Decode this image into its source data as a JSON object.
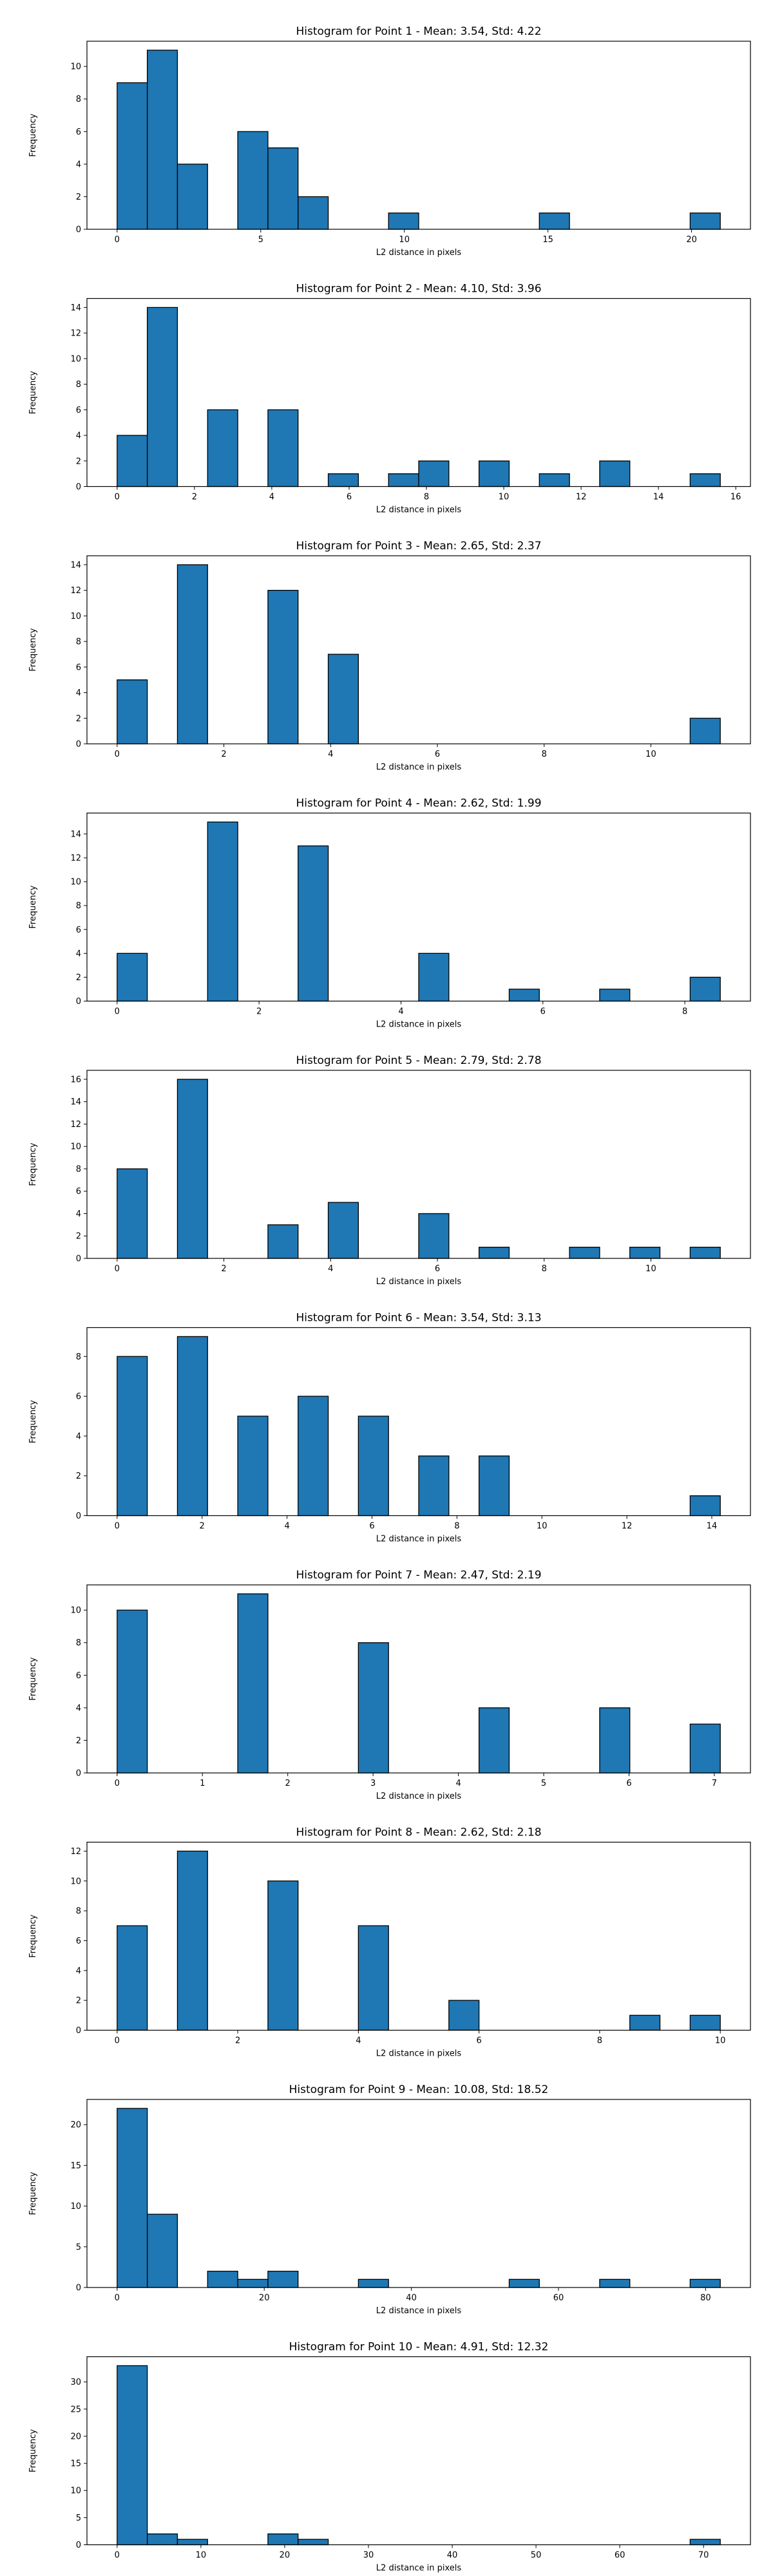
{
  "style": {
    "bar_color": "#1f77b4",
    "edge_color": "#000000"
  },
  "chart_data": [
    {
      "type": "bar",
      "title": "Histogram for Point 1 - Mean: 3.54, Std: 4.22",
      "xlabel": "L2 distance in pixels",
      "ylabel": "Frequency",
      "xlim": [
        -1.05,
        22.05
      ],
      "ylim": [
        0,
        11.55
      ],
      "xticks": [
        0,
        5,
        10,
        15,
        20
      ],
      "yticks": [
        0,
        2,
        4,
        6,
        8,
        10
      ],
      "bins": [
        {
          "x0": 0,
          "x1": 1.05,
          "count": 9
        },
        {
          "x0": 1.05,
          "x1": 2.1,
          "count": 11
        },
        {
          "x0": 2.1,
          "x1": 3.15,
          "count": 4
        },
        {
          "x0": 4.2,
          "x1": 5.25,
          "count": 6
        },
        {
          "x0": 5.25,
          "x1": 6.3,
          "count": 5
        },
        {
          "x0": 6.3,
          "x1": 7.35,
          "count": 2
        },
        {
          "x0": 9.45,
          "x1": 10.5,
          "count": 1
        },
        {
          "x0": 14.7,
          "x1": 15.75,
          "count": 1
        },
        {
          "x0": 19.95,
          "x1": 21.0,
          "count": 1
        }
      ]
    },
    {
      "type": "bar",
      "title": "Histogram for Point 2 - Mean: 4.10, Std: 3.96",
      "xlabel": "L2 distance in pixels",
      "ylabel": "Frequency",
      "xlim": [
        -0.78,
        16.38
      ],
      "ylim": [
        0,
        14.7
      ],
      "xticks": [
        0,
        2,
        4,
        6,
        8,
        10,
        12,
        14,
        16
      ],
      "yticks": [
        0,
        2,
        4,
        6,
        8,
        10,
        12,
        14
      ],
      "bins": [
        {
          "x0": 0,
          "x1": 0.78,
          "count": 4
        },
        {
          "x0": 0.78,
          "x1": 1.56,
          "count": 14
        },
        {
          "x0": 2.34,
          "x1": 3.12,
          "count": 6
        },
        {
          "x0": 3.9,
          "x1": 4.68,
          "count": 6
        },
        {
          "x0": 5.46,
          "x1": 6.24,
          "count": 1
        },
        {
          "x0": 7.02,
          "x1": 7.8,
          "count": 1
        },
        {
          "x0": 7.8,
          "x1": 8.58,
          "count": 2
        },
        {
          "x0": 9.36,
          "x1": 10.14,
          "count": 2
        },
        {
          "x0": 10.92,
          "x1": 11.7,
          "count": 1
        },
        {
          "x0": 12.48,
          "x1": 13.26,
          "count": 2
        },
        {
          "x0": 14.82,
          "x1": 15.6,
          "count": 1
        }
      ]
    },
    {
      "type": "bar",
      "title": "Histogram for Point 3 - Mean: 2.65, Std: 2.37",
      "xlabel": "L2 distance in pixels",
      "ylabel": "Frequency",
      "xlim": [
        -0.565,
        11.865
      ],
      "ylim": [
        0,
        14.7
      ],
      "xticks": [
        0,
        2,
        4,
        6,
        8,
        10
      ],
      "yticks": [
        0,
        2,
        4,
        6,
        8,
        10,
        12,
        14
      ],
      "bins": [
        {
          "x0": 0,
          "x1": 0.565,
          "count": 5
        },
        {
          "x0": 1.13,
          "x1": 1.695,
          "count": 14
        },
        {
          "x0": 2.825,
          "x1": 3.39,
          "count": 12
        },
        {
          "x0": 3.955,
          "x1": 4.52,
          "count": 7
        },
        {
          "x0": 10.735,
          "x1": 11.3,
          "count": 2
        }
      ]
    },
    {
      "type": "bar",
      "title": "Histogram for Point 4 - Mean: 2.62, Std: 1.99",
      "xlabel": "L2 distance in pixels",
      "ylabel": "Frequency",
      "xlim": [
        -0.425,
        8.925
      ],
      "ylim": [
        0,
        15.75
      ],
      "xticks": [
        0,
        2,
        4,
        6,
        8
      ],
      "yticks": [
        0,
        2,
        4,
        6,
        8,
        10,
        12,
        14
      ],
      "bins": [
        {
          "x0": 0,
          "x1": 0.425,
          "count": 4
        },
        {
          "x0": 1.275,
          "x1": 1.7,
          "count": 15
        },
        {
          "x0": 2.55,
          "x1": 2.975,
          "count": 13
        },
        {
          "x0": 4.25,
          "x1": 4.675,
          "count": 4
        },
        {
          "x0": 5.525,
          "x1": 5.95,
          "count": 1
        },
        {
          "x0": 6.8,
          "x1": 7.225,
          "count": 1
        },
        {
          "x0": 8.075,
          "x1": 8.5,
          "count": 2
        }
      ]
    },
    {
      "type": "bar",
      "title": "Histogram for Point 5 - Mean: 2.79, Std: 2.78",
      "xlabel": "L2 distance in pixels",
      "ylabel": "Frequency",
      "xlim": [
        -0.565,
        11.865
      ],
      "ylim": [
        0,
        16.8
      ],
      "xticks": [
        0,
        2,
        4,
        6,
        8,
        10
      ],
      "yticks": [
        0,
        2,
        4,
        6,
        8,
        10,
        12,
        14,
        16
      ],
      "bins": [
        {
          "x0": 0,
          "x1": 0.565,
          "count": 8
        },
        {
          "x0": 1.13,
          "x1": 1.695,
          "count": 16
        },
        {
          "x0": 2.825,
          "x1": 3.39,
          "count": 3
        },
        {
          "x0": 3.955,
          "x1": 4.52,
          "count": 5
        },
        {
          "x0": 5.65,
          "x1": 6.215,
          "count": 4
        },
        {
          "x0": 6.78,
          "x1": 7.345,
          "count": 1
        },
        {
          "x0": 8.475,
          "x1": 9.04,
          "count": 1
        },
        {
          "x0": 9.605,
          "x1": 10.17,
          "count": 1
        },
        {
          "x0": 10.735,
          "x1": 11.3,
          "count": 1
        }
      ]
    },
    {
      "type": "bar",
      "title": "Histogram for Point 6 - Mean: 3.54, Std: 3.13",
      "xlabel": "L2 distance in pixels",
      "ylabel": "Frequency",
      "xlim": [
        -0.71,
        14.91
      ],
      "ylim": [
        0,
        9.45
      ],
      "xticks": [
        0,
        2,
        4,
        6,
        8,
        10,
        12,
        14
      ],
      "yticks": [
        0,
        2,
        4,
        6,
        8
      ],
      "bins": [
        {
          "x0": 0,
          "x1": 0.71,
          "count": 8
        },
        {
          "x0": 1.42,
          "x1": 2.13,
          "count": 9
        },
        {
          "x0": 2.84,
          "x1": 3.55,
          "count": 5
        },
        {
          "x0": 4.26,
          "x1": 4.97,
          "count": 6
        },
        {
          "x0": 5.68,
          "x1": 6.39,
          "count": 5
        },
        {
          "x0": 7.1,
          "x1": 7.81,
          "count": 3
        },
        {
          "x0": 8.52,
          "x1": 9.23,
          "count": 3
        },
        {
          "x0": 13.49,
          "x1": 14.2,
          "count": 1
        }
      ]
    },
    {
      "type": "bar",
      "title": "Histogram for Point 7 - Mean: 2.47, Std: 2.19",
      "xlabel": "L2 distance in pixels",
      "ylabel": "Frequency",
      "xlim": [
        -0.3535,
        7.4235
      ],
      "ylim": [
        0,
        11.55
      ],
      "xticks": [
        0,
        1,
        2,
        3,
        4,
        5,
        6,
        7
      ],
      "yticks": [
        0,
        2,
        4,
        6,
        8,
        10
      ],
      "bins": [
        {
          "x0": 0,
          "x1": 0.3535,
          "count": 10
        },
        {
          "x0": 1.414,
          "x1": 1.7675,
          "count": 11
        },
        {
          "x0": 2.828,
          "x1": 3.1815,
          "count": 8
        },
        {
          "x0": 4.242,
          "x1": 4.5955,
          "count": 4
        },
        {
          "x0": 5.656,
          "x1": 6.0095,
          "count": 4
        },
        {
          "x0": 6.7165,
          "x1": 7.07,
          "count": 3
        }
      ]
    },
    {
      "type": "bar",
      "title": "Histogram for Point 8 - Mean: 2.62, Std: 2.18",
      "xlabel": "L2 distance in pixels",
      "ylabel": "Frequency",
      "xlim": [
        -0.5,
        10.5
      ],
      "ylim": [
        0,
        12.6
      ],
      "xticks": [
        0,
        2,
        4,
        6,
        8,
        10
      ],
      "yticks": [
        0,
        2,
        4,
        6,
        8,
        10,
        12
      ],
      "bins": [
        {
          "x0": 0,
          "x1": 0.5,
          "count": 7
        },
        {
          "x0": 1.0,
          "x1": 1.5,
          "count": 12
        },
        {
          "x0": 2.5,
          "x1": 3.0,
          "count": 10
        },
        {
          "x0": 4.0,
          "x1": 4.5,
          "count": 7
        },
        {
          "x0": 5.5,
          "x1": 6.0,
          "count": 2
        },
        {
          "x0": 8.5,
          "x1": 9.0,
          "count": 1
        },
        {
          "x0": 9.5,
          "x1": 10.0,
          "count": 1
        }
      ]
    },
    {
      "type": "bar",
      "title": "Histogram for Point 9 - Mean: 10.08, Std: 18.52",
      "xlabel": "L2 distance in pixels",
      "ylabel": "Frequency",
      "xlim": [
        -4.1,
        86.1
      ],
      "ylim": [
        0,
        23.1
      ],
      "xticks": [
        0,
        20,
        40,
        60,
        80
      ],
      "yticks": [
        0,
        5,
        10,
        15,
        20
      ],
      "bins": [
        {
          "x0": 0,
          "x1": 4.1,
          "count": 22
        },
        {
          "x0": 4.1,
          "x1": 8.2,
          "count": 9
        },
        {
          "x0": 12.3,
          "x1": 16.4,
          "count": 2
        },
        {
          "x0": 16.4,
          "x1": 20.5,
          "count": 1
        },
        {
          "x0": 20.5,
          "x1": 24.6,
          "count": 2
        },
        {
          "x0": 32.8,
          "x1": 36.9,
          "count": 1
        },
        {
          "x0": 53.3,
          "x1": 57.4,
          "count": 1
        },
        {
          "x0": 65.6,
          "x1": 69.7,
          "count": 1
        },
        {
          "x0": 77.9,
          "x1": 82.0,
          "count": 1
        }
      ]
    },
    {
      "type": "bar",
      "title": "Histogram for Point 10 - Mean: 4.91, Std: 12.32",
      "xlabel": "L2 distance in pixels",
      "ylabel": "Frequency",
      "xlim": [
        -3.6,
        75.6
      ],
      "ylim": [
        0,
        34.65
      ],
      "xticks": [
        0,
        10,
        20,
        30,
        40,
        50,
        60,
        70
      ],
      "yticks": [
        0,
        5,
        10,
        15,
        20,
        25,
        30
      ],
      "bins": [
        {
          "x0": 0,
          "x1": 3.6,
          "count": 33
        },
        {
          "x0": 3.6,
          "x1": 7.2,
          "count": 2
        },
        {
          "x0": 7.2,
          "x1": 10.8,
          "count": 1
        },
        {
          "x0": 18.0,
          "x1": 21.6,
          "count": 2
        },
        {
          "x0": 21.6,
          "x1": 25.2,
          "count": 1
        },
        {
          "x0": 68.4,
          "x1": 72.0,
          "count": 1
        }
      ]
    }
  ]
}
